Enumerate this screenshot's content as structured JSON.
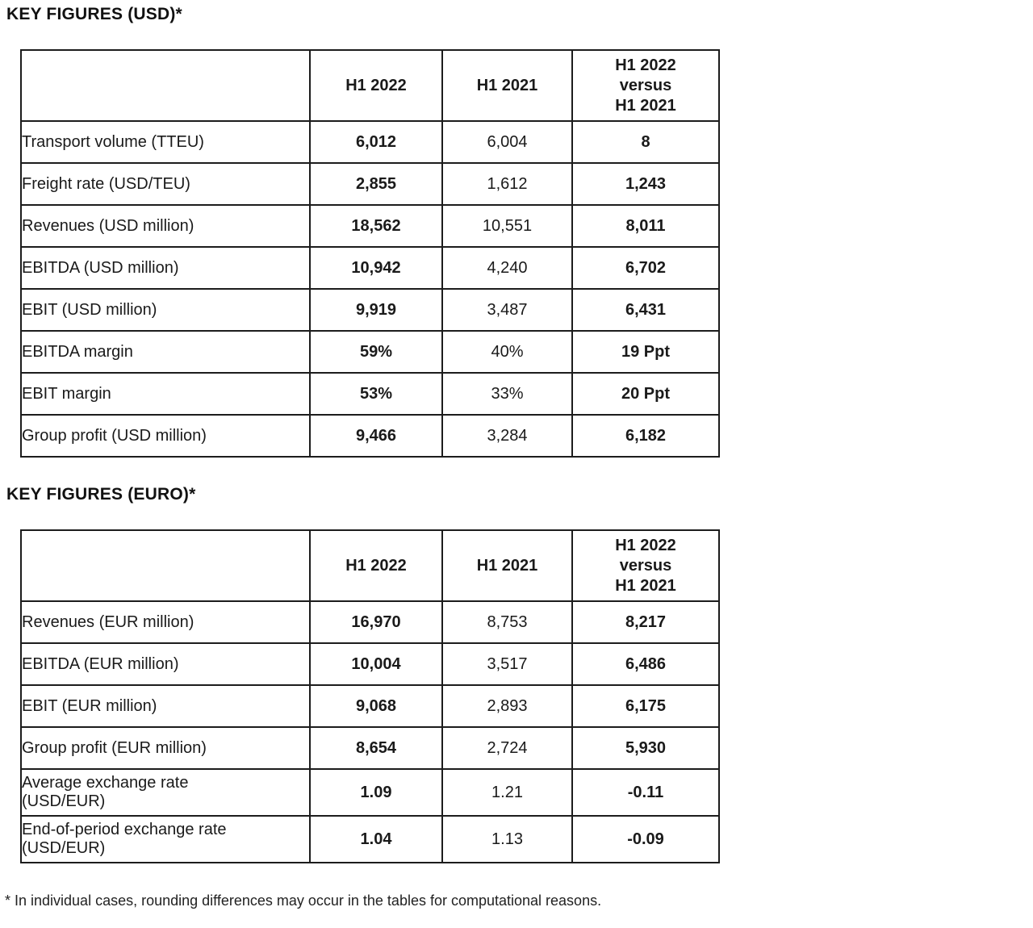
{
  "usd_table": {
    "title": "KEY FIGURES (USD)*",
    "headers": {
      "label": "",
      "h1_2022": "H1 2022",
      "h1_2021": "H1 2021",
      "versus": "H1 2022\nversus\nH1 2021"
    },
    "rows": [
      {
        "label": "Transport volume (TTEU)",
        "h1_2022": "6,012",
        "h1_2021": "6,004",
        "versus": "8"
      },
      {
        "label": "Freight rate (USD/TEU)",
        "h1_2022": "2,855",
        "h1_2021": "1,612",
        "versus": "1,243"
      },
      {
        "label": "Revenues (USD million)",
        "h1_2022": "18,562",
        "h1_2021": "10,551",
        "versus": "8,011"
      },
      {
        "label": "EBITDA (USD million)",
        "h1_2022": "10,942",
        "h1_2021": "4,240",
        "versus": "6,702"
      },
      {
        "label": "EBIT (USD million)",
        "h1_2022": "9,919",
        "h1_2021": "3,487",
        "versus": "6,431"
      },
      {
        "label": "EBITDA margin",
        "h1_2022": "59%",
        "h1_2021": "40%",
        "versus": "19 Ppt"
      },
      {
        "label": "EBIT margin",
        "h1_2022": "53%",
        "h1_2021": "33%",
        "versus": "20 Ppt"
      },
      {
        "label": "Group profit (USD million)",
        "h1_2022": "9,466",
        "h1_2021": "3,284",
        "versus": "6,182"
      }
    ]
  },
  "euro_table": {
    "title": "KEY FIGURES (EURO)*",
    "headers": {
      "label": "",
      "h1_2022": "H1 2022",
      "h1_2021": "H1 2021",
      "versus": "H1 2022\nversus\nH1 2021"
    },
    "rows": [
      {
        "label": "Revenues (EUR million)",
        "h1_2022": "16,970",
        "h1_2021": "8,753",
        "versus": "8,217"
      },
      {
        "label": "EBITDA (EUR million)",
        "h1_2022": "10,004",
        "h1_2021": "3,517",
        "versus": "6,486"
      },
      {
        "label": "EBIT (EUR million)",
        "h1_2022": "9,068",
        "h1_2021": "2,893",
        "versus": "6,175"
      },
      {
        "label": "Group profit (EUR million)",
        "h1_2022": "8,654",
        "h1_2021": "2,724",
        "versus": "5,930"
      },
      {
        "label": "Average exchange rate\n(USD/EUR)",
        "h1_2022": "1.09",
        "h1_2021": "1.21",
        "versus": "-0.11"
      },
      {
        "label": "End-of-period exchange rate\n(USD/EUR)",
        "h1_2022": "1.04",
        "h1_2021": "1.13",
        "versus": "-0.09"
      }
    ]
  },
  "footnote": "* In individual cases, rounding differences may occur in the tables for computational reasons."
}
